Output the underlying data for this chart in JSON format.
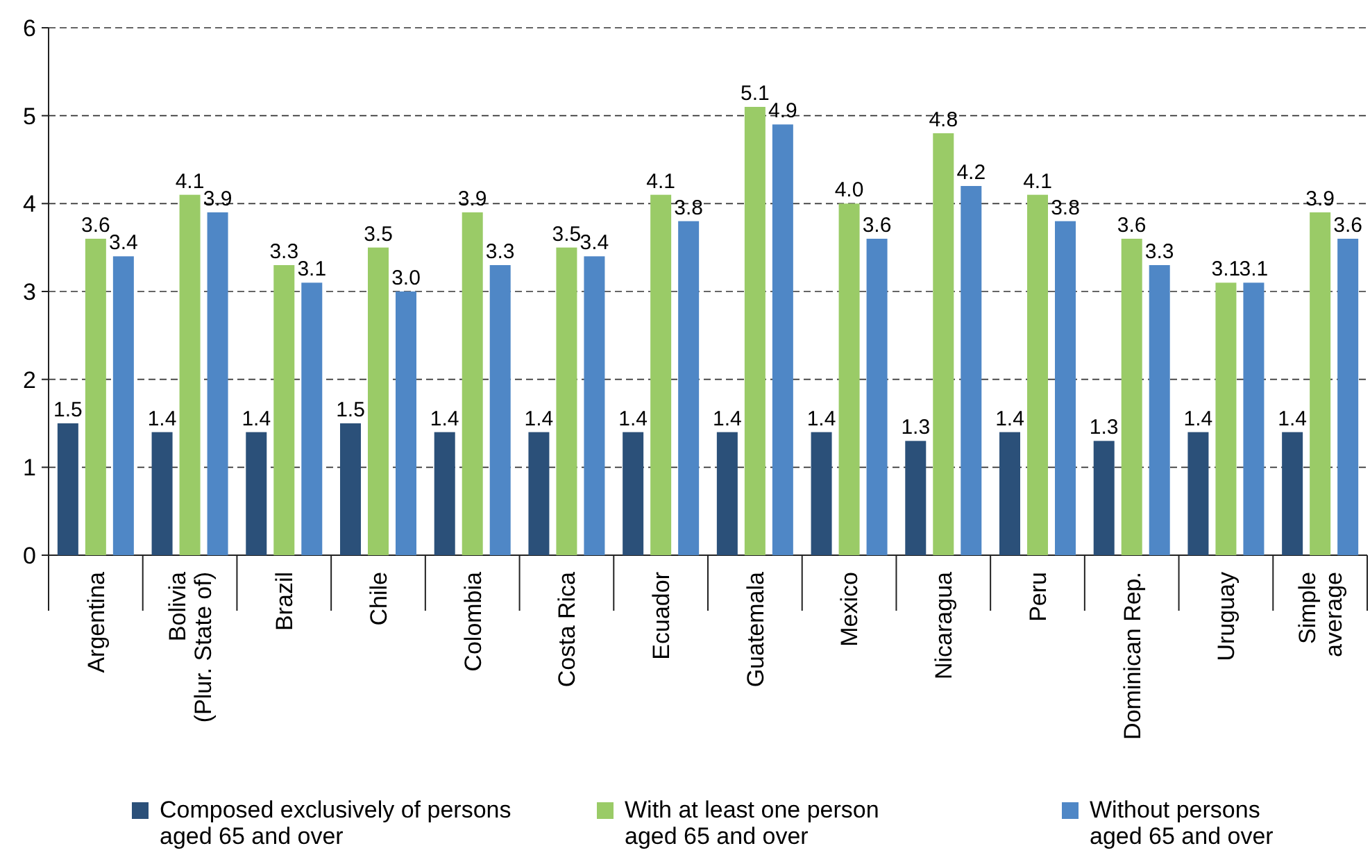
{
  "chart_data": {
    "type": "bar",
    "categories": [
      "Argentina",
      "Bolivia\n(Plur. State of)",
      "Brazil",
      "Chile",
      "Colombia",
      "Costa Rica",
      "Ecuador",
      "Guatemala",
      "Mexico",
      "Nicaragua",
      "Peru",
      "Dominican Rep.",
      "Uruguay",
      "Simple\naverage"
    ],
    "series": [
      {
        "name": "Composed exclusively of persons aged 65 and over",
        "color": "#2b5079",
        "values": [
          1.5,
          1.4,
          1.4,
          1.5,
          1.4,
          1.4,
          1.4,
          1.4,
          1.4,
          1.3,
          1.4,
          1.3,
          1.4,
          1.4
        ],
        "value_labels": [
          "1.5",
          "1.4",
          "1.4",
          "1.5",
          "1.4",
          "1.4",
          "1.4",
          "1.4",
          "1.4",
          "1.3",
          "1.4",
          "1.3",
          "1.4",
          "1.4"
        ]
      },
      {
        "name": "With at least one person aged 65 and over",
        "color": "#9acb67",
        "values": [
          3.6,
          4.1,
          3.3,
          3.5,
          3.9,
          3.5,
          4.1,
          5.1,
          4.0,
          4.8,
          4.1,
          3.6,
          3.1,
          3.9
        ],
        "value_labels": [
          "3.6",
          "4.1",
          "3.3",
          "3.5",
          "3.9",
          "3.5",
          "4.1",
          "5.1",
          "4.0",
          "4.8",
          "4.1",
          "3.6",
          "3.1",
          "3.9"
        ]
      },
      {
        "name": "Without persons aged 65 and over",
        "color": "#4f87c6",
        "values": [
          3.4,
          3.9,
          3.1,
          3.0,
          3.3,
          3.4,
          3.8,
          4.9,
          3.6,
          4.2,
          3.8,
          3.3,
          3.1,
          3.6
        ],
        "value_labels": [
          "3.4",
          "3.9",
          "3.1",
          "3.0",
          "3.3",
          "3.4",
          "3.8",
          "4.9",
          "3.6",
          "4.2",
          "3.8",
          "3.3",
          "3.1",
          "3.6"
        ]
      }
    ],
    "ylim": [
      0,
      6
    ],
    "yticks": [
      0,
      1,
      2,
      3,
      4,
      5,
      6
    ],
    "grid": "y",
    "legend": "bottom"
  }
}
